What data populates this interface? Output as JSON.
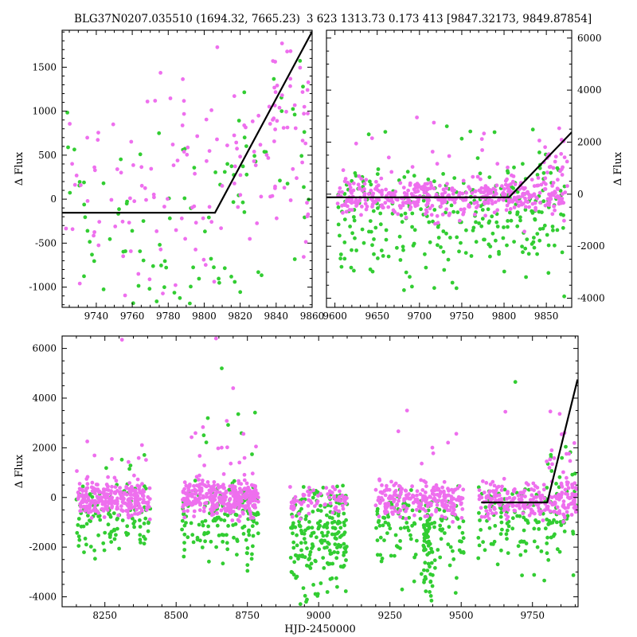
{
  "seed": 77,
  "colors": {
    "magenta": "#ee6fee",
    "green": "#32cd32",
    "line": "#000000",
    "axis": "#000000",
    "background": "#ffffff"
  },
  "chart_data": [
    {
      "id": "top_left",
      "type": "scatter",
      "title": "BLG37N0207.035510 (1694.32, 7665.23)",
      "xlabel": "",
      "ylabel": "Δ Flux",
      "yaxis_side": "left",
      "xlim": [
        9721,
        9860
      ],
      "ylim": [
        -1230,
        1920
      ],
      "xticks": [
        9740,
        9760,
        9780,
        9800,
        9820,
        9840,
        9860
      ],
      "yticks": [
        -1000,
        -500,
        0,
        500,
        1000,
        1500
      ],
      "xminor": 5,
      "yminor": 100,
      "grid": false,
      "model_line": [
        [
          9721,
          -155
        ],
        [
          9806,
          -155
        ],
        [
          9860,
          1905
        ]
      ],
      "clusters": [
        {
          "color": "green",
          "n": 90,
          "x": [
            9723,
            9859
          ],
          "y_mean": -150,
          "y_sd": 700,
          "y_clip": [
            -1200,
            1850
          ]
        },
        {
          "color": "green",
          "n": 10,
          "x": [
            9810,
            9858
          ],
          "y_mean": 900,
          "y_sd": 500,
          "y_clip": [
            -300,
            1850
          ]
        },
        {
          "color": "magenta",
          "n": 120,
          "x": [
            9723,
            9859
          ],
          "y_mean": 150,
          "y_sd": 600,
          "y_clip": [
            -1150,
            1880
          ]
        },
        {
          "color": "magenta",
          "n": 22,
          "x": [
            9836,
            9859
          ],
          "y_mean": 1400,
          "y_sd": 400,
          "y_clip": [
            200,
            1900
          ]
        },
        {
          "color": "magenta",
          "n": 15,
          "x": [
            9800,
            9840
          ],
          "y_mean": 500,
          "y_sd": 300,
          "y_clip": [
            -200,
            1300
          ]
        }
      ],
      "outliers": []
    },
    {
      "id": "top_right",
      "type": "scatter",
      "title": "3 623 1313.73 0.173 413 [9847.32173, 9849.87854]",
      "xlabel": "",
      "ylabel": "Δ Flux",
      "yaxis_side": "right",
      "xlim": [
        9590,
        9880
      ],
      "ylim": [
        -4350,
        6300
      ],
      "xticks": [
        9600,
        9650,
        9700,
        9750,
        9800,
        9850
      ],
      "yticks": [
        -4000,
        -2000,
        0,
        2000,
        4000,
        6000
      ],
      "xminor": 10,
      "yminor": 500,
      "grid": false,
      "model_line": [
        [
          9590,
          -120
        ],
        [
          9806,
          -120
        ],
        [
          9880,
          2380
        ]
      ],
      "clusters": [
        {
          "color": "green",
          "n": 230,
          "x": [
            9603,
            9872
          ],
          "y_mean": -1000,
          "y_sd": 1100,
          "y_clip": [
            -4250,
            900
          ]
        },
        {
          "color": "green",
          "n": 60,
          "x": [
            9603,
            9872
          ],
          "y_mean": 0,
          "y_sd": 600,
          "y_clip": [
            -1500,
            2200
          ]
        },
        {
          "color": "green",
          "n": 12,
          "x": [
            9650,
            9860
          ],
          "y_mean": 1800,
          "y_sd": 700,
          "y_clip": [
            900,
            3800
          ]
        },
        {
          "color": "magenta",
          "n": 380,
          "x": [
            9603,
            9872
          ],
          "y_mean": -120,
          "y_sd": 300,
          "y_clip": [
            -1200,
            800
          ]
        },
        {
          "color": "magenta",
          "n": 70,
          "x": [
            9603,
            9872
          ],
          "y_mean": 200,
          "y_sd": 800,
          "y_clip": [
            -2500,
            3100
          ]
        },
        {
          "color": "magenta",
          "n": 26,
          "x": [
            9840,
            9876
          ],
          "y_mean": 1100,
          "y_sd": 700,
          "y_clip": [
            -200,
            2900
          ]
        }
      ],
      "outliers": [
        {
          "color": "magenta",
          "x": 9697,
          "y": 2950
        },
        {
          "color": "magenta",
          "x": 9717,
          "y": 2750
        },
        {
          "color": "green",
          "x": 9640,
          "y": 2300
        }
      ]
    },
    {
      "id": "bottom",
      "type": "scatter",
      "title": "",
      "xlabel": "HJD-2450000",
      "ylabel": "Δ Flux",
      "yaxis_side": "left",
      "xlim": [
        8100,
        9910
      ],
      "ylim": [
        -4400,
        6500
      ],
      "xticks": [
        8250,
        8500,
        8750,
        9000,
        9250,
        9500,
        9750
      ],
      "yticks": [
        -4000,
        -2000,
        0,
        2000,
        4000,
        6000
      ],
      "xminor": 50,
      "yminor": 500,
      "grid": false,
      "model_line": [
        [
          9570,
          -200
        ],
        [
          9802,
          -200
        ],
        [
          9908,
          4750
        ]
      ],
      "clusters": [
        {
          "color": "green",
          "n": 120,
          "x": [
            8150,
            8410
          ],
          "y_mean": -800,
          "y_sd": 800,
          "y_clip": [
            -2800,
            600
          ]
        },
        {
          "color": "green",
          "n": 150,
          "x": [
            8520,
            8790
          ],
          "y_mean": -900,
          "y_sd": 900,
          "y_clip": [
            -3600,
            700
          ]
        },
        {
          "color": "green",
          "n": 210,
          "x": [
            8900,
            9100
          ],
          "y_mean": -1300,
          "y_sd": 1200,
          "y_clip": [
            -4300,
            500
          ]
        },
        {
          "color": "green",
          "n": 150,
          "x": [
            9200,
            9510
          ],
          "y_mean": -1100,
          "y_sd": 1100,
          "y_clip": [
            -4350,
            500
          ]
        },
        {
          "color": "green",
          "n": 42,
          "x": [
            9368,
            9398
          ],
          "y_mean": -2200,
          "y_sd": 1300,
          "y_clip": [
            -4380,
            -200
          ]
        },
        {
          "color": "green",
          "n": 130,
          "x": [
            9560,
            9905
          ],
          "y_mean": -900,
          "y_sd": 900,
          "y_clip": [
            -3800,
            500
          ]
        },
        {
          "color": "green",
          "n": 14,
          "x": [
            9780,
            9905
          ],
          "y_mean": 900,
          "y_sd": 800,
          "y_clip": [
            -200,
            4800
          ]
        },
        {
          "color": "green",
          "n": 8,
          "x": [
            8550,
            8780
          ],
          "y_mean": 2500,
          "y_sd": 1200,
          "y_clip": [
            1200,
            5300
          ]
        },
        {
          "color": "green",
          "n": 5,
          "x": [
            8200,
            8400
          ],
          "y_mean": 1500,
          "y_sd": 600,
          "y_clip": [
            800,
            2600
          ]
        },
        {
          "color": "magenta",
          "n": 260,
          "x": [
            8150,
            8410
          ],
          "y_mean": -50,
          "y_sd": 350,
          "y_clip": [
            -900,
            900
          ]
        },
        {
          "color": "magenta",
          "n": 320,
          "x": [
            8520,
            8790
          ],
          "y_mean": 0,
          "y_sd": 380,
          "y_clip": [
            -1000,
            1100
          ]
        },
        {
          "color": "magenta",
          "n": 70,
          "x": [
            8900,
            9100
          ],
          "y_mean": -150,
          "y_sd": 300,
          "y_clip": [
            -900,
            500
          ]
        },
        {
          "color": "magenta",
          "n": 230,
          "x": [
            9200,
            9510
          ],
          "y_mean": -100,
          "y_sd": 350,
          "y_clip": [
            -1000,
            800
          ]
        },
        {
          "color": "magenta",
          "n": 230,
          "x": [
            9560,
            9905
          ],
          "y_mean": -100,
          "y_sd": 350,
          "y_clip": [
            -1000,
            800
          ]
        },
        {
          "color": "magenta",
          "n": 16,
          "x": [
            8540,
            8790
          ],
          "y_mean": 1800,
          "y_sd": 800,
          "y_clip": [
            900,
            4000
          ]
        },
        {
          "color": "magenta",
          "n": 8,
          "x": [
            8150,
            8410
          ],
          "y_mean": 1500,
          "y_sd": 500,
          "y_clip": [
            800,
            2600
          ]
        },
        {
          "color": "magenta",
          "n": 18,
          "x": [
            9800,
            9905
          ],
          "y_mean": 1400,
          "y_sd": 900,
          "y_clip": [
            0,
            3600
          ]
        },
        {
          "color": "magenta",
          "n": 6,
          "x": [
            9250,
            9500
          ],
          "y_mean": 1700,
          "y_sd": 700,
          "y_clip": [
            900,
            3600
          ]
        }
      ],
      "outliers": [
        {
          "color": "magenta",
          "x": 8310,
          "y": 6350
        },
        {
          "color": "magenta",
          "x": 8640,
          "y": 6400
        },
        {
          "color": "green",
          "x": 8660,
          "y": 5200
        },
        {
          "color": "magenta",
          "x": 8700,
          "y": 4400
        },
        {
          "color": "magenta",
          "x": 9310,
          "y": 3500
        },
        {
          "color": "magenta",
          "x": 9655,
          "y": 3450
        },
        {
          "color": "green",
          "x": 9690,
          "y": 4650
        }
      ]
    }
  ]
}
